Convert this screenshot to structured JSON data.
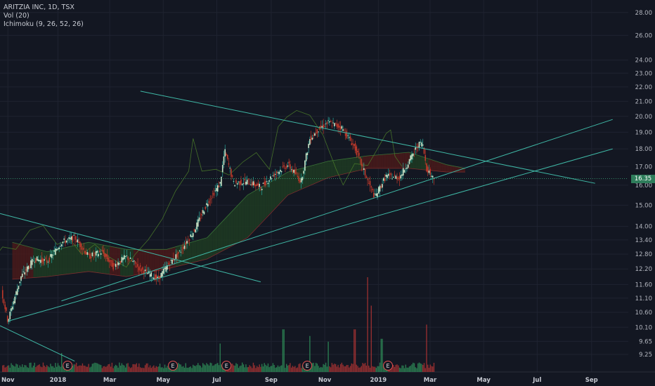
{
  "header": {
    "symbol_line": "ARITZIA INC, 1D, TSX",
    "volume_line": "Vol (20)",
    "ichimoku_line": "Ichimoku (9, 26, 52, 26)"
  },
  "colors": {
    "background": "#131722",
    "grid": "#1f2330",
    "up": "#26a69a",
    "down": "#c0392b",
    "trendline": "#3fb8a6",
    "cloud_bull": "#1e3b22",
    "cloud_bear": "#4a1a1a",
    "last_price_tag": "#2e7d5b"
  },
  "chart_data": {
    "type": "candlestick",
    "symbol": "ARITZIA INC",
    "interval": "1D",
    "exchange": "TSX",
    "last_price": "16.35",
    "y_scale": "log",
    "ylim": [
      9.0,
      28.5
    ],
    "y_ticks": [
      "28.00",
      "26.00",
      "24.00",
      "23.00",
      "22.00",
      "21.00",
      "20.00",
      "19.00",
      "18.00",
      "17.00",
      "16.00",
      "15.00",
      "14.00",
      "13.40",
      "12.80",
      "12.20",
      "11.60",
      "11.10",
      "10.60",
      "10.10",
      "9.65",
      "9.25"
    ],
    "x_ticks": [
      "Nov",
      "2018",
      "Mar",
      "May",
      "Jul",
      "Sep",
      "Nov",
      "2019",
      "Mar",
      "May",
      "Jul",
      "Sep"
    ],
    "price_path": [
      [
        "2017-10-27",
        11.6
      ],
      [
        "2017-11-05",
        10.3
      ],
      [
        "2017-11-20",
        11.9
      ],
      [
        "2017-12-05",
        12.6
      ],
      [
        "2017-12-20",
        12.5
      ],
      [
        "2018-01-05",
        13.3
      ],
      [
        "2018-01-20",
        13.5
      ],
      [
        "2018-02-05",
        12.7
      ],
      [
        "2018-02-20",
        12.9
      ],
      [
        "2018-03-05",
        12.3
      ],
      [
        "2018-03-20",
        12.7
      ],
      [
        "2018-04-05",
        12.2
      ],
      [
        "2018-04-25",
        11.8
      ],
      [
        "2018-05-05",
        12.3
      ],
      [
        "2018-05-20",
        12.9
      ],
      [
        "2018-06-05",
        13.8
      ],
      [
        "2018-06-20",
        15.1
      ],
      [
        "2018-07-05",
        16.1
      ],
      [
        "2018-07-10",
        17.9
      ],
      [
        "2018-07-20",
        16.1
      ],
      [
        "2018-08-05",
        16.2
      ],
      [
        "2018-08-20",
        15.9
      ],
      [
        "2018-09-05",
        16.6
      ],
      [
        "2018-09-20",
        17.1
      ],
      [
        "2018-10-05",
        16.2
      ],
      [
        "2018-10-15",
        18.6
      ],
      [
        "2018-10-25",
        19.2
      ],
      [
        "2018-11-05",
        19.6
      ],
      [
        "2018-11-20",
        19.3
      ],
      [
        "2018-12-05",
        18.1
      ],
      [
        "2018-12-20",
        16.2
      ],
      [
        "2018-12-28",
        15.4
      ],
      [
        "2019-01-10",
        16.5
      ],
      [
        "2019-01-25",
        16.4
      ],
      [
        "2019-02-05",
        17.3
      ],
      [
        "2019-02-15",
        18.2
      ],
      [
        "2019-02-20",
        18.4
      ],
      [
        "2019-02-25",
        16.9
      ],
      [
        "2019-03-05",
        16.35
      ]
    ],
    "ichimoku_upper": [
      [
        "2017-11-10",
        13.3
      ],
      [
        "2017-12-20",
        12.9
      ],
      [
        "2018-02-05",
        13.3
      ],
      [
        "2018-03-20",
        13.0
      ],
      [
        "2018-05-05",
        13.0
      ],
      [
        "2018-06-20",
        13.5
      ],
      [
        "2018-08-05",
        15.5
      ],
      [
        "2018-09-20",
        16.7
      ],
      [
        "2018-11-05",
        17.3
      ],
      [
        "2018-12-20",
        17.6
      ],
      [
        "2019-02-05",
        17.8
      ],
      [
        "2019-03-20",
        17.1
      ],
      [
        "2019-04-10",
        16.9
      ]
    ],
    "ichimoku_lower": [
      [
        "2017-11-10",
        11.8
      ],
      [
        "2017-12-20",
        11.9
      ],
      [
        "2018-02-05",
        12.1
      ],
      [
        "2018-03-20",
        11.9
      ],
      [
        "2018-05-05",
        12.2
      ],
      [
        "2018-06-20",
        12.6
      ],
      [
        "2018-08-05",
        13.5
      ],
      [
        "2018-09-20",
        15.5
      ],
      [
        "2018-11-05",
        16.4
      ],
      [
        "2018-12-20",
        16.9
      ],
      [
        "2019-02-05",
        16.9
      ],
      [
        "2019-03-20",
        16.7
      ],
      [
        "2019-04-10",
        16.7
      ]
    ],
    "trendlines": [
      {
        "from": [
          "2018-04-05",
          21.7
        ],
        "to": [
          "2019-09-05",
          16.1
        ]
      },
      {
        "from": [
          "2018-01-05",
          11.0
        ],
        "to": [
          "2019-09-25",
          19.8
        ]
      },
      {
        "from": [
          "2017-11-05",
          10.3
        ],
        "to": [
          "2019-09-25",
          18.0
        ]
      },
      {
        "from": [
          "2017-10-27",
          14.6
        ],
        "to": [
          "2018-08-20",
          11.7
        ]
      },
      {
        "from": [
          "2017-10-27",
          10.15
        ],
        "to": [
          "2018-01-20",
          9.05
        ]
      }
    ],
    "volume_spikes": [
      {
        "date": "2018-01-05",
        "volume": 0.2
      },
      {
        "date": "2018-07-05",
        "volume": 0.3
      },
      {
        "date": "2018-09-15",
        "volume": 0.45
      },
      {
        "date": "2018-10-15",
        "volume": 0.38
      },
      {
        "date": "2018-11-05",
        "volume": 0.32
      },
      {
        "date": "2018-12-05",
        "volume": 0.45
      },
      {
        "date": "2018-12-20",
        "volume": 1.0
      },
      {
        "date": "2018-12-24",
        "volume": 0.7
      },
      {
        "date": "2019-01-05",
        "volume": 0.35
      },
      {
        "date": "2019-02-25",
        "volume": 0.5
      }
    ],
    "earnings_markers": [
      {
        "date": "2018-01-12",
        "label": "E"
      },
      {
        "date": "2018-05-12",
        "label": "E"
      },
      {
        "date": "2018-07-12",
        "label": "E"
      },
      {
        "date": "2018-10-12",
        "label": "E"
      },
      {
        "date": "2019-01-12",
        "label": "E"
      }
    ]
  }
}
